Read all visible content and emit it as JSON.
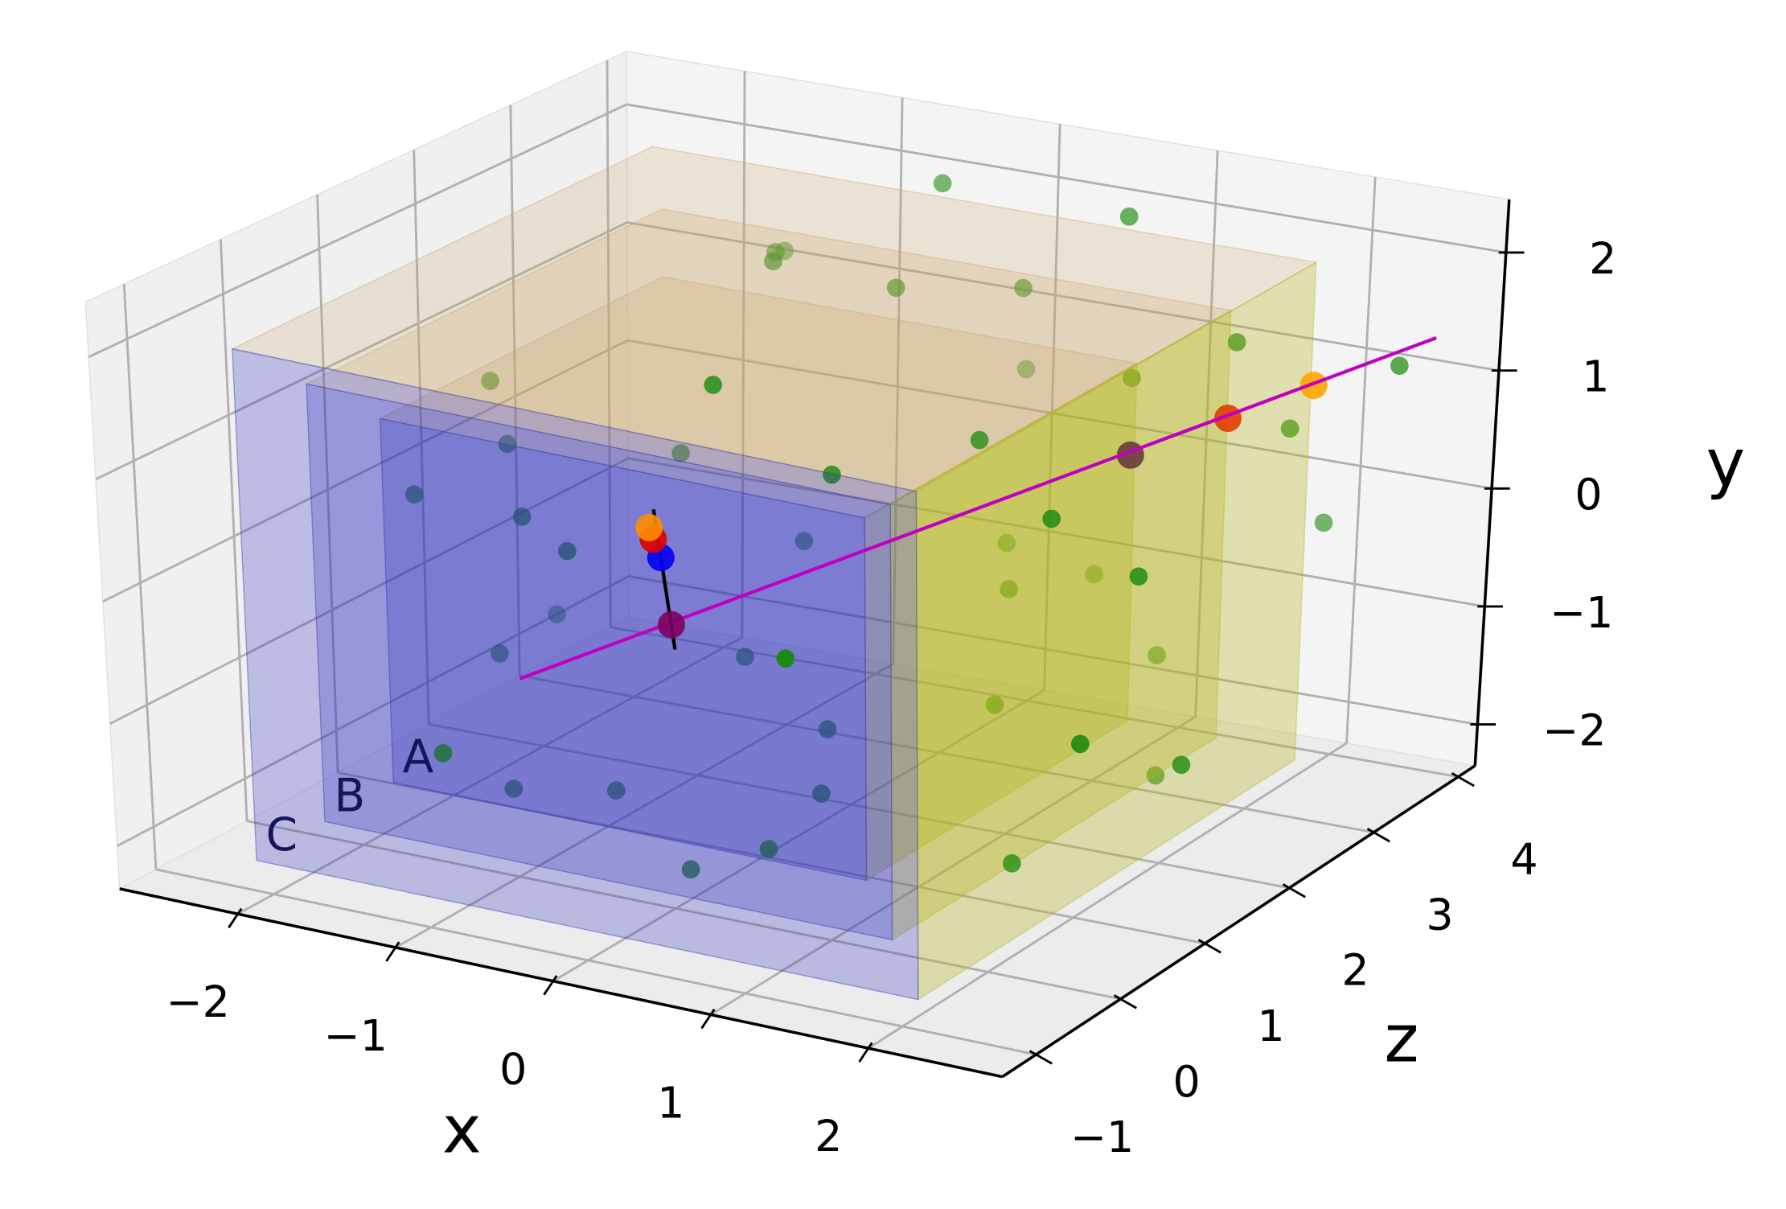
{
  "chart_data": {
    "type": "scatter3d",
    "x_label": "x",
    "y_label": "y",
    "z_label": "z",
    "xlim": [
      -2.75,
      2.85
    ],
    "ylim": [
      -2.35,
      2.45
    ],
    "zlim": [
      -1.4,
      4.2
    ],
    "xticks": [
      {
        "value": -2,
        "label": "−2"
      },
      {
        "value": -1,
        "label": "−1"
      },
      0,
      1,
      2
    ],
    "yticks": [
      {
        "value": -2,
        "label": "−2"
      },
      {
        "value": -1,
        "label": "−1"
      },
      0,
      1,
      2
    ],
    "zticks": [
      {
        "value": -1,
        "label": "−1"
      },
      0,
      1,
      2,
      3,
      4
    ],
    "grid": true,
    "face_colors": {
      "front": "#2b2bbd",
      "side": "#b4b41e",
      "top": "#c9a46a"
    },
    "regions": [
      {
        "label": "C",
        "x": [
          -2.1,
          2.1
        ],
        "y": [
          -2.1,
          2.1
        ],
        "z": [
          -1.0,
          3.4
        ]
      },
      {
        "label": "B",
        "x": [
          -1.8,
          1.8
        ],
        "y": [
          -1.8,
          1.8
        ],
        "z": [
          -0.75,
          3.0
        ]
      },
      {
        "label": "A",
        "x": [
          -1.5,
          1.5
        ],
        "y": [
          -1.5,
          1.5
        ],
        "z": [
          -0.5,
          2.5
        ]
      }
    ],
    "scatter": {
      "color": "#1a8a0a",
      "x": [
        -2.0,
        -2.2,
        -1.9,
        -1.4,
        -1.0,
        -0.8,
        -1.2,
        -0.6,
        0.1,
        0.6,
        -1.8,
        -0.4,
        0.3,
        0.6,
        1.2,
        -0.3,
        0.5,
        0.8,
        1.6,
        1.3,
        -0.5,
        -0.8,
        -0.2,
        0.8,
        0.2,
        -1.2,
        1.9,
        2.3,
        2.1,
        1.8,
        2.4,
        2.6,
        0.7,
        -0.6,
        0.3,
        2.0,
        1.4,
        -1.5,
        1.0,
        -1.0,
        1.6,
        2.2,
        0.0,
        -2.2,
        1.0
      ],
      "y": [
        0.9,
        0.1,
        0.4,
        0.2,
        0.1,
        0.6,
        -1.8,
        -1.7,
        -2.0,
        -1.7,
        -1.2,
        -1.0,
        -1.3,
        -1.5,
        -1.0,
        1.5,
        1.0,
        0.9,
        0.7,
        1.2,
        2.0,
        1.8,
        1.6,
        2.1,
        1.4,
        1.5,
        1.6,
        -0.6,
        0.3,
        -1.8,
        -1.2,
        1.3,
        -0.9,
        -0.5,
        -0.6,
        -0.3,
        -1.2,
        1.2,
        0.2,
        -1.0,
        -2.0,
        0.9,
        0.5,
        -1.5,
        -0.3
      ],
      "z": [
        1.5,
        1.0,
        1.5,
        0.8,
        0.6,
        1.5,
        0.3,
        0.4,
        0.0,
        0.0,
        1.2,
        1.5,
        1.2,
        0.6,
        1.5,
        1.0,
        0.9,
        2.0,
        1.4,
        2.8,
        3.8,
        2.5,
        2.8,
        3.6,
        3.5,
        3.2,
        2.9,
        0.5,
        1.5,
        2.3,
        1.5,
        3.5,
        3.5,
        2.5,
        3.2,
        3.8,
        3.0,
        3.8,
        -0.5,
        -0.8,
        1.0,
        3.0,
        3.9,
        2.5,
        2.0
      ]
    },
    "lines": [
      {
        "color": "#c000c0",
        "x": [
          -0.5,
          2.55
        ],
        "y": [
          -0.25,
          1.3
        ],
        "z": [
          -0.8,
          4.0
        ]
      },
      {
        "color": "#000000",
        "x": [
          -0.13,
          0.02
        ],
        "y": [
          0.9,
          -0.2
        ],
        "z": [
          0.05,
          0.0
        ]
      }
    ],
    "markers": {
      "x": [
        2.14,
        1.86,
        1.53,
        0.0,
        -0.13,
        -0.106,
        -0.06
      ],
      "y": [
        1.09,
        0.95,
        0.78,
        0.0,
        0.77,
        0.68,
        0.54
      ],
      "z": [
        3.36,
        2.9,
        2.4,
        0.0,
        0.0,
        0.0,
        0.0
      ],
      "colors": [
        "#ffa500",
        "#e03c00",
        "#6b3a3a",
        "#800060",
        "#ff8c00",
        "#e00000",
        "#0000ee"
      ]
    }
  }
}
